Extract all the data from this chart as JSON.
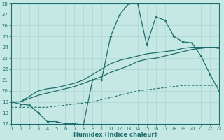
{
  "xlabel": "Humidex (Indice chaleur)",
  "xlim": [
    0,
    23
  ],
  "ylim": [
    17,
    28
  ],
  "yticks": [
    17,
    18,
    19,
    20,
    21,
    22,
    23,
    24,
    25,
    26,
    27,
    28
  ],
  "xticks": [
    0,
    1,
    2,
    3,
    4,
    5,
    6,
    7,
    8,
    9,
    10,
    11,
    12,
    13,
    14,
    15,
    16,
    17,
    18,
    19,
    20,
    21,
    22,
    23
  ],
  "bg_color": "#c5e8e5",
  "grid_color": "#b0d8d5",
  "line_color": "#1e6e6e",
  "line1_y": [
    19.0,
    18.8,
    18.7,
    18.0,
    17.2,
    17.2,
    17.0,
    17.0,
    16.9,
    21.0,
    21.0,
    25.0,
    27.0,
    28.0,
    28.0,
    24.2,
    26.8,
    26.5,
    25.0,
    24.5,
    24.4,
    23.2,
    21.5,
    20.0
  ],
  "line2_y": [
    19.0,
    19.0,
    19.5,
    20.0,
    20.2,
    20.3,
    20.5,
    20.7,
    21.0,
    21.5,
    22.0,
    22.5,
    22.8,
    23.0,
    23.2,
    23.4,
    23.5,
    23.6,
    23.7,
    23.9,
    24.0,
    24.0,
    24.0,
    24.0
  ],
  "line3_y": [
    19.0,
    19.0,
    19.3,
    19.6,
    19.8,
    20.0,
    20.2,
    20.4,
    20.7,
    21.0,
    21.3,
    21.7,
    22.0,
    22.3,
    22.7,
    22.9,
    23.0,
    23.2,
    23.4,
    23.6,
    23.8,
    23.9,
    24.0,
    23.9
  ],
  "line4_y": [
    18.5,
    18.5,
    18.5,
    18.5,
    18.5,
    18.6,
    18.7,
    18.8,
    18.9,
    19.0,
    19.2,
    19.4,
    19.6,
    19.8,
    20.0,
    20.1,
    20.2,
    20.3,
    20.4,
    20.5,
    20.5,
    20.5,
    20.5,
    20.5
  ]
}
